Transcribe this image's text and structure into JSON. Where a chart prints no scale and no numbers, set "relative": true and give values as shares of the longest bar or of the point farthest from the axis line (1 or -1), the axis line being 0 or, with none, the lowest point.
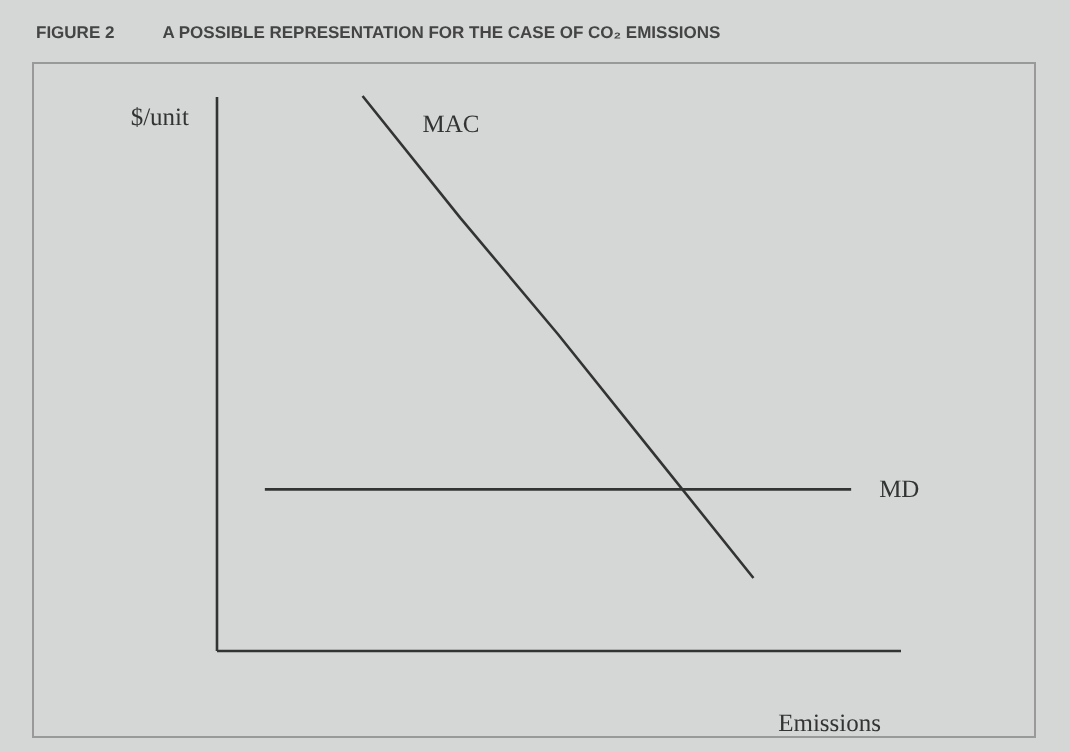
{
  "chart_data": {
    "type": "line",
    "title": "FIGURE 2",
    "subtitle": "A POSSIBLE REPRESENTATION FOR THE CASE OF CO₂ EMISSIONS",
    "xlabel": "Emissions",
    "ylabel": "$/unit",
    "relative": true,
    "categories": [
      null,
      null,
      null,
      null,
      null,
      null,
      null
    ],
    "series": [
      {
        "name": "MAC",
        "color": "#333333",
        "values": [
          null,
          1,
          0.78,
          0.57,
          0.35,
          0.13,
          null
        ]
      },
      {
        "name": "MD",
        "color": "#333333",
        "values": [
          0.29,
          0.29,
          0.29,
          0.29,
          0.29,
          0.29,
          0.29
        ]
      }
    ],
    "grid": false,
    "legend": false,
    "marker": "none",
    "line_style": "solid"
  }
}
